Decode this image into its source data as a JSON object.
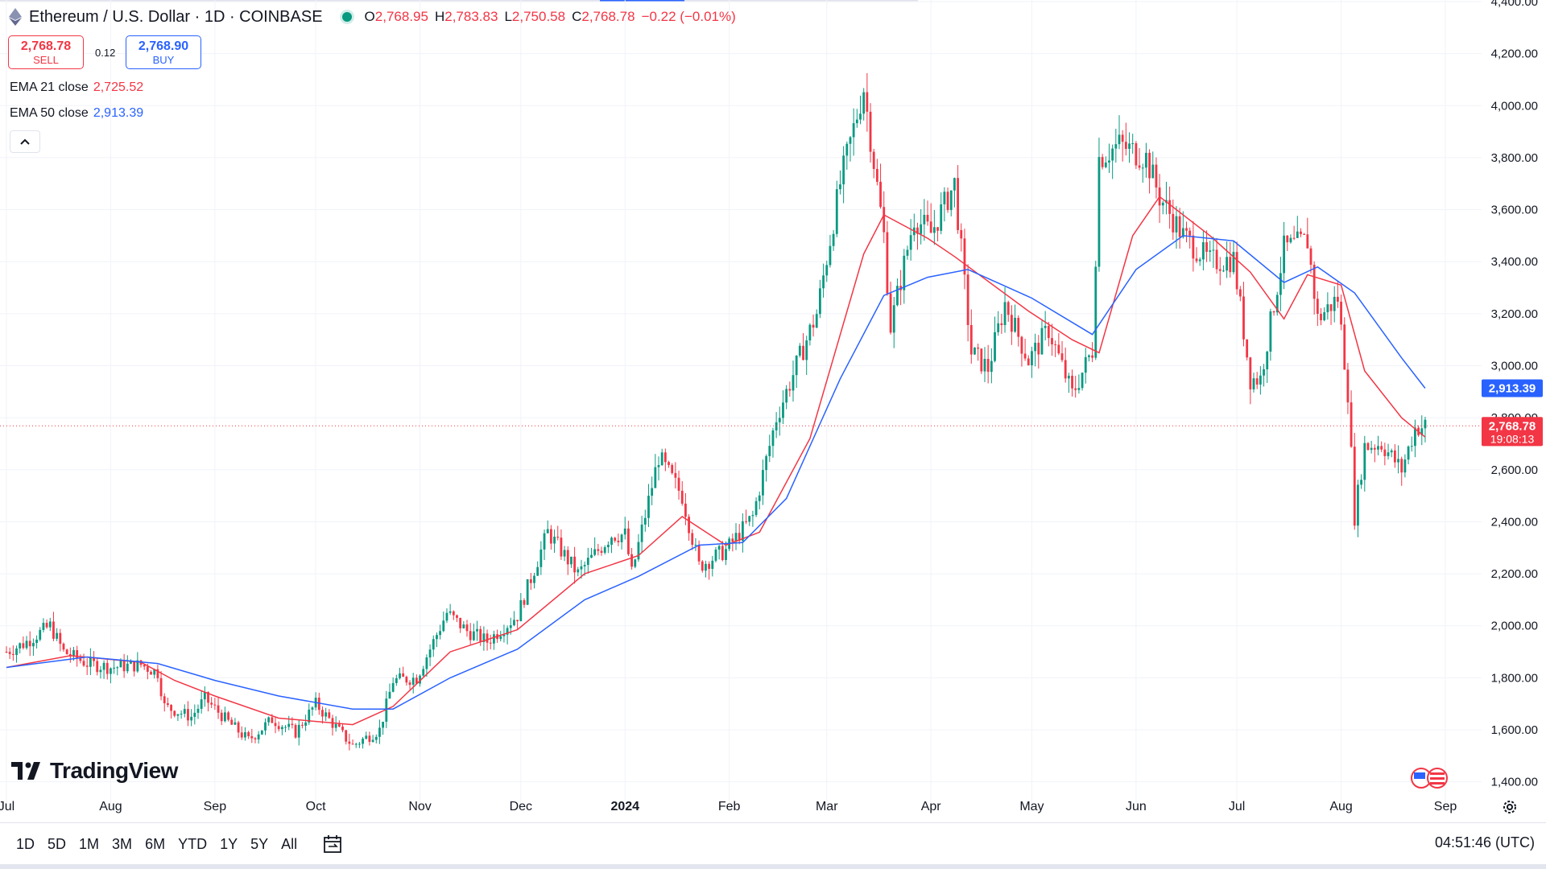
{
  "header": {
    "symbol": "Ethereum / U.S. Dollar · 1D · COINBASE",
    "ohlc": [
      {
        "label": "O",
        "value": "2,768.95"
      },
      {
        "label": "H",
        "value": "2,783.83"
      },
      {
        "label": "L",
        "value": "2,750.58"
      },
      {
        "label": "C",
        "value": "2,768.78"
      }
    ],
    "change": "−0.22 (−0.01%)"
  },
  "trade": {
    "sell_price": "2,768.78",
    "sell_label": "SELL",
    "spread": "0.12",
    "buy_price": "2,768.90",
    "buy_label": "BUY"
  },
  "indicators": {
    "ema21_label": "EMA 21 close",
    "ema21_value": "2,725.52",
    "ema50_label": "EMA 50 close",
    "ema50_value": "2,913.39"
  },
  "logo": "TradingView",
  "bottom_bar": {
    "ranges": [
      "1D",
      "5D",
      "1M",
      "3M",
      "6M",
      "YTD",
      "1Y",
      "5Y",
      "All"
    ],
    "clock": "04:51:46 (UTC)"
  },
  "colors": {
    "up": "#089981",
    "down": "#f23645",
    "ema21": "#f23645",
    "ema50": "#2962ff",
    "grid": "#f0f3fa"
  },
  "chart_data": {
    "type": "candlestick",
    "title": "Ethereum / U.S. Dollar · 1D · COINBASE",
    "ylim": [
      1300,
      4400
    ],
    "y_ticks": [
      1400,
      1600,
      1800,
      2000,
      2200,
      2400,
      2600,
      2800,
      3000,
      3200,
      3400,
      3600,
      3800,
      4000,
      4200,
      4400
    ],
    "y_tick_labels": [
      "1,400.00",
      "1,600.00",
      "1,800.00",
      "2,000.00",
      "2,200.00",
      "2,400.00",
      "2,600.00",
      "2,800.00",
      "3,000.00",
      "3,200.00",
      "3,400.00",
      "3,600.00",
      "3,800.00",
      "4,000.00",
      "4,200.00",
      "4,400.00"
    ],
    "x_labels": [
      {
        "label": "Jul",
        "date": "2023-07-01"
      },
      {
        "label": "Aug",
        "date": "2023-08-01"
      },
      {
        "label": "Sep",
        "date": "2023-09-01"
      },
      {
        "label": "Oct",
        "date": "2023-10-01"
      },
      {
        "label": "Nov",
        "date": "2023-11-01"
      },
      {
        "label": "Dec",
        "date": "2023-12-01"
      },
      {
        "label": "2024",
        "date": "2024-01-01",
        "bold": true
      },
      {
        "label": "Feb",
        "date": "2024-02-01"
      },
      {
        "label": "Mar",
        "date": "2024-03-01"
      },
      {
        "label": "Apr",
        "date": "2024-04-01"
      },
      {
        "label": "May",
        "date": "2024-05-01"
      },
      {
        "label": "Jun",
        "date": "2024-06-01"
      },
      {
        "label": "Jul",
        "date": "2024-07-01"
      },
      {
        "label": "Aug",
        "date": "2024-08-01"
      },
      {
        "label": "Sep",
        "date": "2024-09-01"
      }
    ],
    "x_range": [
      "2023-07-01",
      "2024-09-01"
    ],
    "close_path": [
      [
        "2023-07-01",
        1900
      ],
      [
        "2023-07-06",
        1930
      ],
      [
        "2023-07-14",
        2000
      ],
      [
        "2023-07-18",
        1900
      ],
      [
        "2023-07-25",
        1855
      ],
      [
        "2023-08-01",
        1840
      ],
      [
        "2023-08-10",
        1850
      ],
      [
        "2023-08-15",
        1820
      ],
      [
        "2023-08-17",
        1690
      ],
      [
        "2023-08-25",
        1650
      ],
      [
        "2023-08-29",
        1720
      ],
      [
        "2023-09-05",
        1630
      ],
      [
        "2023-09-11",
        1560
      ],
      [
        "2023-09-18",
        1640
      ],
      [
        "2023-09-25",
        1590
      ],
      [
        "2023-10-01",
        1700
      ],
      [
        "2023-10-09",
        1580
      ],
      [
        "2023-10-12",
        1540
      ],
      [
        "2023-10-20",
        1600
      ],
      [
        "2023-10-24",
        1790
      ],
      [
        "2023-10-31",
        1800
      ],
      [
        "2023-11-09",
        2050
      ],
      [
        "2023-11-15",
        1980
      ],
      [
        "2023-11-21",
        1940
      ],
      [
        "2023-11-30",
        2040
      ],
      [
        "2023-12-09",
        2360
      ],
      [
        "2023-12-18",
        2200
      ],
      [
        "2023-12-28",
        2350
      ],
      [
        "2024-01-01",
        2350
      ],
      [
        "2024-01-03",
        2200
      ],
      [
        "2024-01-11",
        2650
      ],
      [
        "2024-01-18",
        2500
      ],
      [
        "2024-01-23",
        2230
      ],
      [
        "2024-01-31",
        2290
      ],
      [
        "2024-02-08",
        2420
      ],
      [
        "2024-02-15",
        2800
      ],
      [
        "2024-02-27",
        3200
      ],
      [
        "2024-03-05",
        3700
      ],
      [
        "2024-03-12",
        4070
      ],
      [
        "2024-03-18",
        3500
      ],
      [
        "2024-03-20",
        3150
      ],
      [
        "2024-03-27",
        3570
      ],
      [
        "2024-04-01",
        3510
      ],
      [
        "2024-04-08",
        3700
      ],
      [
        "2024-04-13",
        3050
      ],
      [
        "2024-04-18",
        2990
      ],
      [
        "2024-04-23",
        3240
      ],
      [
        "2024-04-30",
        3020
      ],
      [
        "2024-05-06",
        3140
      ],
      [
        "2024-05-13",
        2890
      ],
      [
        "2024-05-19",
        3060
      ],
      [
        "2024-05-21",
        3800
      ],
      [
        "2024-05-27",
        3850
      ],
      [
        "2024-06-04",
        3800
      ],
      [
        "2024-06-08",
        3650
      ],
      [
        "2024-06-15",
        3500
      ],
      [
        "2024-06-23",
        3400
      ],
      [
        "2024-06-30",
        3410
      ],
      [
        "2024-07-05",
        2950
      ],
      [
        "2024-07-08",
        2950
      ],
      [
        "2024-07-15",
        3450
      ],
      [
        "2024-07-22",
        3480
      ],
      [
        "2024-07-25",
        3180
      ],
      [
        "2024-07-31",
        3260
      ],
      [
        "2024-08-03",
        2900
      ],
      [
        "2024-08-05",
        2420
      ],
      [
        "2024-08-08",
        2690
      ],
      [
        "2024-08-13",
        2700
      ],
      [
        "2024-08-19",
        2600
      ],
      [
        "2024-08-23",
        2760
      ],
      [
        "2024-08-26",
        2768.78
      ]
    ],
    "series": [
      {
        "name": "EMA 21 close",
        "color": "#f23645",
        "points": [
          [
            "2023-07-01",
            1840
          ],
          [
            "2023-07-20",
            1885
          ],
          [
            "2023-08-10",
            1860
          ],
          [
            "2023-08-20",
            1790
          ],
          [
            "2023-09-01",
            1730
          ],
          [
            "2023-09-20",
            1645
          ],
          [
            "2023-10-12",
            1620
          ],
          [
            "2023-10-24",
            1690
          ],
          [
            "2023-11-10",
            1900
          ],
          [
            "2023-11-30",
            1985
          ],
          [
            "2023-12-20",
            2200
          ],
          [
            "2024-01-05",
            2270
          ],
          [
            "2024-01-18",
            2420
          ],
          [
            "2024-01-31",
            2310
          ],
          [
            "2024-02-10",
            2360
          ],
          [
            "2024-02-25",
            2720
          ],
          [
            "2024-03-12",
            3430
          ],
          [
            "2024-03-18",
            3580
          ],
          [
            "2024-03-31",
            3490
          ],
          [
            "2024-04-08",
            3420
          ],
          [
            "2024-04-30",
            3210
          ],
          [
            "2024-05-13",
            3100
          ],
          [
            "2024-05-21",
            3050
          ],
          [
            "2024-05-31",
            3500
          ],
          [
            "2024-06-08",
            3650
          ],
          [
            "2024-06-23",
            3500
          ],
          [
            "2024-07-05",
            3360
          ],
          [
            "2024-07-15",
            3180
          ],
          [
            "2024-07-22",
            3350
          ],
          [
            "2024-08-01",
            3310
          ],
          [
            "2024-08-08",
            2980
          ],
          [
            "2024-08-19",
            2800
          ],
          [
            "2024-08-26",
            2725.52
          ]
        ]
      },
      {
        "name": "EMA 50 close",
        "color": "#2962ff",
        "points": [
          [
            "2023-07-01",
            1840
          ],
          [
            "2023-07-25",
            1880
          ],
          [
            "2023-08-15",
            1855
          ],
          [
            "2023-09-01",
            1790
          ],
          [
            "2023-09-20",
            1730
          ],
          [
            "2023-10-12",
            1680
          ],
          [
            "2023-10-24",
            1680
          ],
          [
            "2023-11-10",
            1800
          ],
          [
            "2023-11-30",
            1910
          ],
          [
            "2023-12-20",
            2100
          ],
          [
            "2024-01-05",
            2190
          ],
          [
            "2024-01-23",
            2310
          ],
          [
            "2024-02-05",
            2320
          ],
          [
            "2024-02-18",
            2490
          ],
          [
            "2024-03-05",
            2950
          ],
          [
            "2024-03-18",
            3270
          ],
          [
            "2024-03-31",
            3340
          ],
          [
            "2024-04-12",
            3370
          ],
          [
            "2024-05-01",
            3260
          ],
          [
            "2024-05-19",
            3120
          ],
          [
            "2024-06-01",
            3370
          ],
          [
            "2024-06-15",
            3500
          ],
          [
            "2024-06-30",
            3480
          ],
          [
            "2024-07-15",
            3320
          ],
          [
            "2024-07-25",
            3380
          ],
          [
            "2024-08-05",
            3280
          ],
          [
            "2024-08-19",
            3030
          ],
          [
            "2024-08-26",
            2913.39
          ]
        ]
      }
    ],
    "last_price": {
      "value": 2768.78,
      "label": "2,768.78",
      "countdown": "19:08:13"
    },
    "price_labels": [
      {
        "value": 2913.39,
        "label": "2,913.39",
        "color": "#2962ff"
      },
      {
        "value": 2725.52,
        "label": "2,725.52",
        "color": "#f23645"
      }
    ],
    "grid": true
  }
}
